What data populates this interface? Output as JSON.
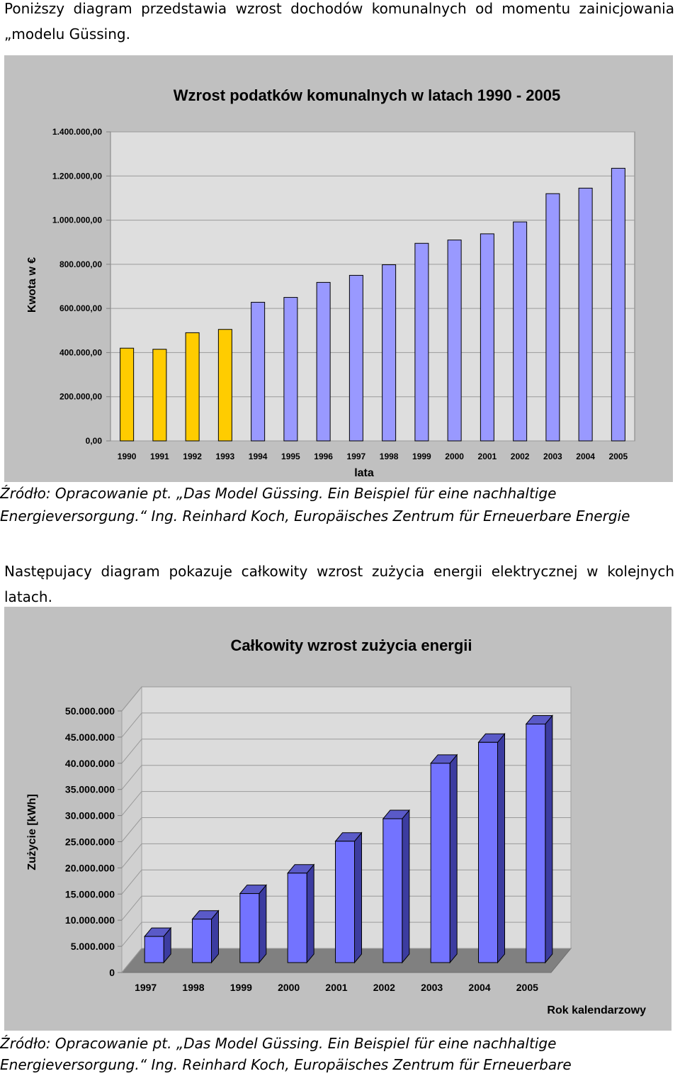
{
  "intro1": "Poniższy diagram przedstawia wzrost dochodów komunalnych od momentu zainicjowania „modelu Güssing.",
  "source1": {
    "line1": "Źródło: Opracowanie pt. „Das Model Güssing. Ein Beispiel für eine nachhaltige",
    "line2": "Energieversorgung.“ Ing. Reinhard Koch, Europäisches Zentrum für Erneuerbare Energie"
  },
  "intro2": "Następujacy diagram pokazuje całkowity wzrost zużycia energii elektrycznej w kolejnych latach.",
  "source2": {
    "line1": "Źródło: Opracowanie pt. „Das Model Güssing. Ein Beispiel für eine nachhaltige",
    "line2": "Energieversorgung.“ Ing. Reinhard Koch, Europäisches Zentrum für Erneuerbare"
  },
  "colors": {
    "chart_bg": "#c0c0c0",
    "plot_bg": "#dedede",
    "bar_yellow": "#ffcc00",
    "bar_blue": "#9999ff",
    "bar3d_front": "#7373ff",
    "bar3d_top": "#5a5ac8",
    "bar3d_side": "#3c3ca0",
    "floor": "#808080"
  },
  "chart_data": [
    {
      "type": "bar",
      "title": "Wzrost podatków komunalnych w latach 1990 - 2005",
      "xlabel": "lata",
      "ylabel": "Kwota w €",
      "categories": [
        "1990",
        "1991",
        "1992",
        "1993",
        "1994",
        "1995",
        "1996",
        "1997",
        "1998",
        "1999",
        "2000",
        "2001",
        "2002",
        "2003",
        "2004",
        "2005"
      ],
      "values": [
        420000,
        415000,
        490000,
        505000,
        628000,
        650000,
        718000,
        750000,
        798000,
        895000,
        910000,
        938000,
        992000,
        1120000,
        1145000,
        1235000
      ],
      "bar_colors": [
        "#ffcc00",
        "#ffcc00",
        "#ffcc00",
        "#ffcc00",
        "#9999ff",
        "#9999ff",
        "#9999ff",
        "#9999ff",
        "#9999ff",
        "#9999ff",
        "#9999ff",
        "#9999ff",
        "#9999ff",
        "#9999ff",
        "#9999ff",
        "#9999ff"
      ],
      "ylim": [
        0,
        1400000
      ],
      "yticks": [
        0,
        200000,
        400000,
        600000,
        800000,
        1000000,
        1200000,
        1400000
      ],
      "ytick_labels": [
        "0,00",
        "200.000,00",
        "400.000,00",
        "600.000,00",
        "800.000,00",
        "1.000.000,00",
        "1.200.000,00",
        "1.400.000,00"
      ],
      "grid": true,
      "legend": "none"
    },
    {
      "type": "bar",
      "title": "Całkowity wzrost zużycia energii",
      "xlabel": "Rok kalendarzowy",
      "ylabel": "Zużycie [kWh]",
      "categories": [
        "1997",
        "1998",
        "1999",
        "2000",
        "2001",
        "2002",
        "2003",
        "2004",
        "2005"
      ],
      "values": [
        5000000,
        8300000,
        13200000,
        17100000,
        23200000,
        27500000,
        38100000,
        42100000,
        45600000
      ],
      "ylim": [
        0,
        50000000
      ],
      "yticks": [
        0,
        5000000,
        10000000,
        15000000,
        20000000,
        25000000,
        30000000,
        35000000,
        40000000,
        45000000,
        50000000
      ],
      "ytick_labels": [
        "0",
        "5.000.000",
        "10.000.000",
        "15.000.000",
        "20.000.000",
        "25.000.000",
        "30.000.000",
        "35.000.000",
        "40.000.000",
        "45.000.000",
        "50.000.000"
      ],
      "grid": true,
      "three_d": true,
      "legend": "none"
    }
  ]
}
